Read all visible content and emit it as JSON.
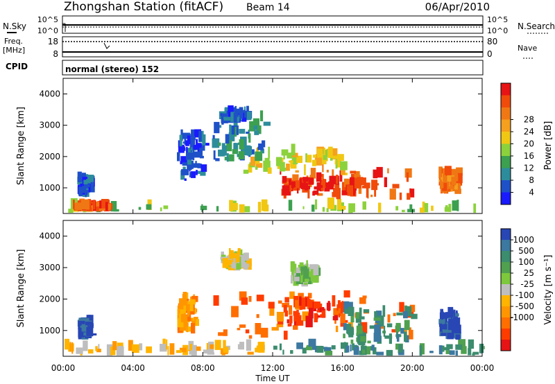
{
  "header": {
    "station": "Zhongshan Station (fitACF)",
    "beam": "Beam 14",
    "date": "06/Apr/2010"
  },
  "status_panel": {
    "nsky_label": "N.Sky",
    "nsearch_label": "N.Search",
    "nsky_ticks": [
      "10^5",
      "10^0"
    ],
    "nsearch_ticks": [
      "10^5",
      "10^0"
    ],
    "freq_label": "Freq.",
    "freq_unit": "[MHz]",
    "freq_ticks": [
      "18",
      "8"
    ],
    "nave_label": "Nave",
    "nave_ticks": [
      "80",
      "0"
    ],
    "cpid_label": "CPID",
    "cpid_value": "normal (stereo) 152"
  },
  "chart_data": [
    {
      "type": "heatmap",
      "name": "power",
      "ylabel": "Slant Range [km]",
      "xlabel": "Time UT",
      "x_ticks": [
        "00:00",
        "04:00",
        "08:00",
        "12:00",
        "16:00",
        "20:00",
        "00:00"
      ],
      "y_ticks": [
        "1000",
        "2000",
        "3000",
        "4000"
      ],
      "xlim_hours": [
        0,
        24
      ],
      "ylim_km": [
        180,
        4500
      ],
      "colorbar": {
        "label": "Power [dB]",
        "ticks": [
          "4",
          "8",
          "12",
          "16",
          "20",
          "24",
          "28"
        ],
        "colors": [
          "#1a1aff",
          "#1e50c8",
          "#2d8c9b",
          "#3ca050",
          "#8cd23c",
          "#f0c814",
          "#f5a01e",
          "#f07814",
          "#f04b0a",
          "#e61414"
        ]
      },
      "regions": [
        {
          "t0": 0.0,
          "t1": 24.0,
          "r0": 200,
          "r1": 330,
          "level": 4
        },
        {
          "t0": 0.5,
          "t1": 2.5,
          "r0": 240,
          "r1": 320,
          "level": 8
        },
        {
          "t0": 12.3,
          "t1": 20.0,
          "r0": 600,
          "r1": 1500,
          "level": 8
        },
        {
          "t0": 12.5,
          "t1": 17.0,
          "r0": 700,
          "r1": 1200,
          "level": 9
        },
        {
          "t0": 10.0,
          "t1": 16.0,
          "r0": 1400,
          "r1": 2100,
          "level": 5
        },
        {
          "t0": 8.5,
          "t1": 11.5,
          "r0": 1800,
          "r1": 3200,
          "level": 2
        },
        {
          "t0": 9.0,
          "t1": 10.5,
          "r0": 3050,
          "r1": 3300,
          "level": 1
        },
        {
          "t0": 6.5,
          "t1": 8.0,
          "r0": 1200,
          "r1": 2700,
          "level": 1
        },
        {
          "t0": 21.5,
          "t1": 22.5,
          "r0": 800,
          "r1": 1400,
          "level": 7
        },
        {
          "t0": 0.8,
          "t1": 1.5,
          "r0": 700,
          "r1": 1200,
          "level": 1
        }
      ]
    },
    {
      "type": "heatmap",
      "name": "velocity",
      "ylabel": "Slant Range [km]",
      "xlabel": "Time UT",
      "x_ticks": [
        "00:00",
        "04:00",
        "08:00",
        "12:00",
        "16:00",
        "20:00",
        "00:00"
      ],
      "y_ticks": [
        "1000",
        "2000",
        "3000",
        "4000"
      ],
      "xlim_hours": [
        0,
        24
      ],
      "ylim_km": [
        180,
        4500
      ],
      "colorbar": {
        "label": "Velocity [m s^-1]",
        "ticks": [
          "1000",
          "500",
          "100",
          "25",
          "-25",
          "-100",
          "-500",
          "-1000"
        ],
        "colors": [
          "#2846b4",
          "#3c78a0",
          "#3c8c6e",
          "#50a050",
          "#7dc83c",
          "#bebebe",
          "#ffb400",
          "#ff9600",
          "#ff6e00",
          "#ff3c00",
          "#e61414"
        ]
      },
      "regions": [
        {
          "t0": 0.0,
          "t1": 12.0,
          "r0": 200,
          "r1": 420,
          "level": 6
        },
        {
          "t0": 12.0,
          "t1": 24.0,
          "r0": 200,
          "r1": 420,
          "level": 2
        },
        {
          "t0": 8.5,
          "t1": 20.0,
          "r0": 700,
          "r1": 2100,
          "level": 8
        },
        {
          "t0": 12.5,
          "t1": 16.0,
          "r0": 1100,
          "r1": 1800,
          "level": 9
        },
        {
          "t0": 16.0,
          "t1": 20.0,
          "r0": 500,
          "r1": 1600,
          "level": 2
        },
        {
          "t0": 9.0,
          "t1": 10.5,
          "r0": 2900,
          "r1": 3300,
          "level": 5
        },
        {
          "t0": 13.0,
          "t1": 14.5,
          "r0": 2400,
          "r1": 2900,
          "level": 4
        },
        {
          "t0": 21.5,
          "t1": 22.5,
          "r0": 700,
          "r1": 1500,
          "level": 0
        },
        {
          "t0": 6.5,
          "t1": 7.5,
          "r0": 900,
          "r1": 2000,
          "level": 7
        },
        {
          "t0": 0.8,
          "t1": 1.5,
          "r0": 700,
          "r1": 1200,
          "level": 0
        }
      ]
    }
  ]
}
